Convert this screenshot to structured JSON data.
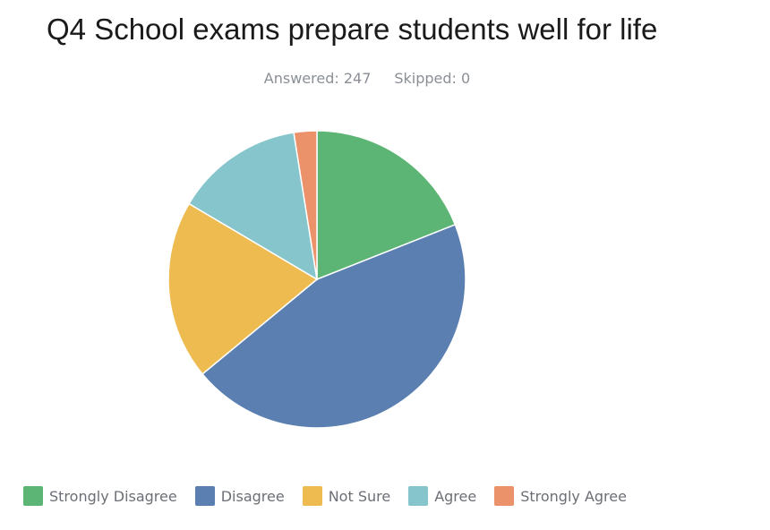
{
  "header": {
    "title": "Q4 School exams prepare students well for life",
    "answered": "Answered: 247",
    "skipped": "Skipped: 0"
  },
  "chart_data": {
    "type": "pie",
    "title": "Q4 School exams prepare students well for life",
    "categories": [
      "Strongly Disagree",
      "Disagree",
      "Not Sure",
      "Agree",
      "Strongly Agree"
    ],
    "values": [
      19.0,
      45.0,
      19.5,
      14.0,
      2.5
    ],
    "unit": "% of respondents (estimated)",
    "colors": [
      "#5cb574",
      "#5b7fb0",
      "#edbb50",
      "#86c5cb",
      "#ec926a"
    ],
    "start_angle_deg": 0,
    "direction": "clockwise",
    "legend_position": "bottom"
  }
}
